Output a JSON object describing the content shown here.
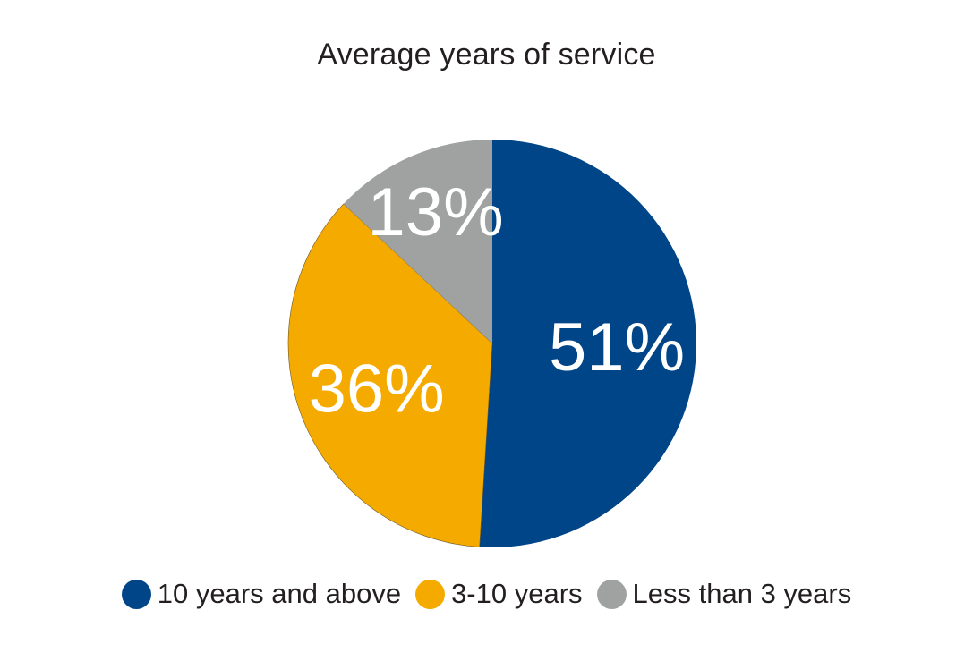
{
  "chart_data": {
    "type": "pie",
    "title": "Average years of service",
    "categories": [
      "10 years and above",
      "3-10 years",
      "Less than 3 years"
    ],
    "values": [
      51,
      36,
      13
    ],
    "value_labels": [
      "51%",
      "36%",
      "13%"
    ],
    "colors": [
      "#004587",
      "#f5aa00",
      "#a0a1a1"
    ],
    "legend_position": "bottom"
  }
}
